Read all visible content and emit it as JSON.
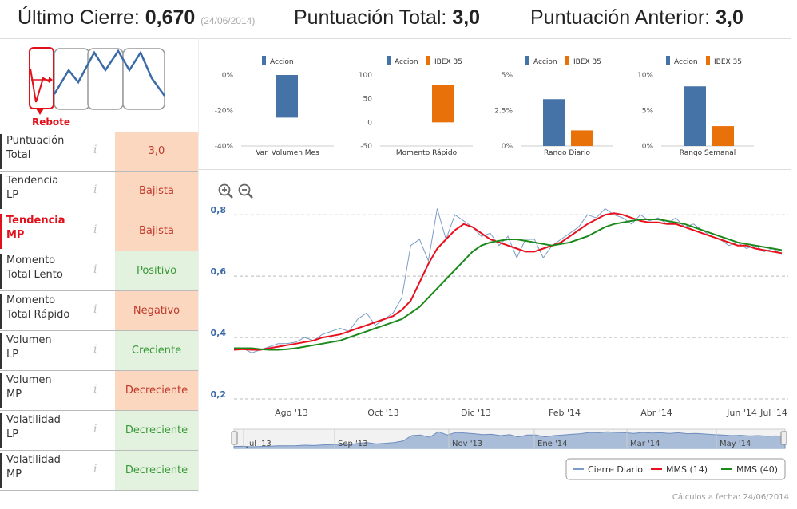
{
  "header": {
    "last_close_label": "Último Cierre:",
    "last_close_value": "0,670",
    "last_close_date": "(24/06/2014)",
    "total_score_label": "Puntuación Total:",
    "total_score_value": "3,0",
    "prev_score_label": "Puntuación Anterior:",
    "prev_score_value": "3,0"
  },
  "logo": {
    "caption": "Rebote"
  },
  "rows": [
    {
      "label1": "Puntuación",
      "label2": "Total",
      "value": "3,0",
      "status": "bad",
      "highlight": false
    },
    {
      "label1": "Tendencia",
      "label2": "LP",
      "value": "Bajista",
      "status": "bad",
      "highlight": false
    },
    {
      "label1": "Tendencia",
      "label2": "MP",
      "value": "Bajista",
      "status": "bad",
      "highlight": true
    },
    {
      "label1": "Momento",
      "label2": "Total Lento",
      "value": "Positivo",
      "status": "good",
      "highlight": false
    },
    {
      "label1": "Momento",
      "label2": "Total Rápido",
      "value": "Negativo",
      "status": "bad",
      "highlight": false
    },
    {
      "label1": "Volumen",
      "label2": "LP",
      "value": "Creciente",
      "status": "good",
      "highlight": false
    },
    {
      "label1": "Volumen",
      "label2": "MP",
      "value": "Decreciente",
      "status": "bad",
      "highlight": false
    },
    {
      "label1": "Volatilidad",
      "label2": "LP",
      "value": "Decreciente",
      "status": "good",
      "highlight": false
    },
    {
      "label1": "Volatilidad",
      "label2": "MP",
      "value": "Decreciente",
      "status": "good",
      "highlight": false
    }
  ],
  "info_glyph": "i",
  "colors": {
    "accion": "#4572a7",
    "ibex": "#e8710a",
    "price": "#7a9cc6",
    "mms14": "#e8101c",
    "mms40": "#1b8a1b"
  },
  "chart_data": [
    {
      "type": "bar",
      "title": "Var. Volumen Mes",
      "legend": [
        "Accion"
      ],
      "yticks": [
        "0%",
        "-20%",
        "-40%"
      ],
      "ylim": [
        -40,
        0
      ],
      "values": [
        -24
      ]
    },
    {
      "type": "bar",
      "title": "Momento Rápido",
      "legend": [
        "Accion",
        "IBEX 35"
      ],
      "yticks": [
        "100",
        "50",
        "0",
        "-50"
      ],
      "ylim": [
        -50,
        100
      ],
      "values": [
        0,
        79
      ]
    },
    {
      "type": "bar",
      "title": "Rango Diario",
      "legend": [
        "Accion",
        "IBEX 35"
      ],
      "yticks": [
        "5%",
        "2.5%",
        "0%"
      ],
      "ylim": [
        0,
        5
      ],
      "values": [
        3.3,
        1.1
      ]
    },
    {
      "type": "bar",
      "title": "Rango Semanal",
      "legend": [
        "Accion",
        "IBEX 35"
      ],
      "yticks": [
        "10%",
        "5%",
        "0%"
      ],
      "ylim": [
        0,
        10
      ],
      "values": [
        8.4,
        2.8
      ]
    },
    {
      "type": "line",
      "ylim": [
        0.2,
        0.85
      ],
      "yticks": [
        "0,8",
        "0,6",
        "0,4",
        "0,2"
      ],
      "xlabels": [
        "Ago '13",
        "Oct '13",
        "Dic '13",
        "Feb '14",
        "Abr '14",
        "Jun '14",
        "Jul '14"
      ],
      "navigator_labels": [
        "Jul '13",
        "Sep '13",
        "Nov '13",
        "Ene '14",
        "Mar '14",
        "May '14"
      ],
      "series": [
        {
          "name": "Cierre Diario",
          "values": [
            0.36,
            0.365,
            0.35,
            0.36,
            0.37,
            0.38,
            0.38,
            0.385,
            0.4,
            0.39,
            0.41,
            0.42,
            0.43,
            0.42,
            0.46,
            0.48,
            0.44,
            0.46,
            0.48,
            0.53,
            0.7,
            0.72,
            0.65,
            0.82,
            0.72,
            0.8,
            0.78,
            0.76,
            0.73,
            0.74,
            0.7,
            0.73,
            0.66,
            0.72,
            0.72,
            0.66,
            0.7,
            0.72,
            0.74,
            0.76,
            0.8,
            0.79,
            0.82,
            0.8,
            0.79,
            0.77,
            0.8,
            0.78,
            0.79,
            0.77,
            0.79,
            0.76,
            0.77,
            0.75,
            0.73,
            0.72,
            0.7,
            0.71,
            0.69,
            0.7,
            0.68,
            0.69,
            0.67
          ]
        },
        {
          "name": "MMS (14)",
          "values": [
            0.36,
            0.362,
            0.36,
            0.36,
            0.365,
            0.37,
            0.375,
            0.38,
            0.385,
            0.39,
            0.4,
            0.405,
            0.41,
            0.42,
            0.43,
            0.44,
            0.45,
            0.46,
            0.47,
            0.49,
            0.52,
            0.58,
            0.64,
            0.69,
            0.72,
            0.75,
            0.77,
            0.76,
            0.74,
            0.72,
            0.71,
            0.7,
            0.69,
            0.68,
            0.68,
            0.69,
            0.7,
            0.71,
            0.73,
            0.75,
            0.77,
            0.785,
            0.8,
            0.805,
            0.8,
            0.79,
            0.78,
            0.775,
            0.775,
            0.77,
            0.77,
            0.76,
            0.75,
            0.74,
            0.73,
            0.72,
            0.71,
            0.7,
            0.7,
            0.69,
            0.685,
            0.68,
            0.675
          ]
        },
        {
          "name": "MMS (40)",
          "values": [
            0.365,
            0.365,
            0.365,
            0.362,
            0.36,
            0.36,
            0.362,
            0.365,
            0.37,
            0.375,
            0.38,
            0.385,
            0.39,
            0.4,
            0.41,
            0.42,
            0.43,
            0.44,
            0.45,
            0.46,
            0.48,
            0.5,
            0.53,
            0.56,
            0.59,
            0.62,
            0.65,
            0.68,
            0.7,
            0.71,
            0.715,
            0.72,
            0.72,
            0.715,
            0.71,
            0.705,
            0.7,
            0.705,
            0.71,
            0.72,
            0.73,
            0.745,
            0.76,
            0.77,
            0.775,
            0.78,
            0.785,
            0.785,
            0.785,
            0.78,
            0.775,
            0.77,
            0.76,
            0.75,
            0.74,
            0.73,
            0.72,
            0.71,
            0.705,
            0.7,
            0.695,
            0.69,
            0.685
          ]
        }
      ]
    }
  ]
}
